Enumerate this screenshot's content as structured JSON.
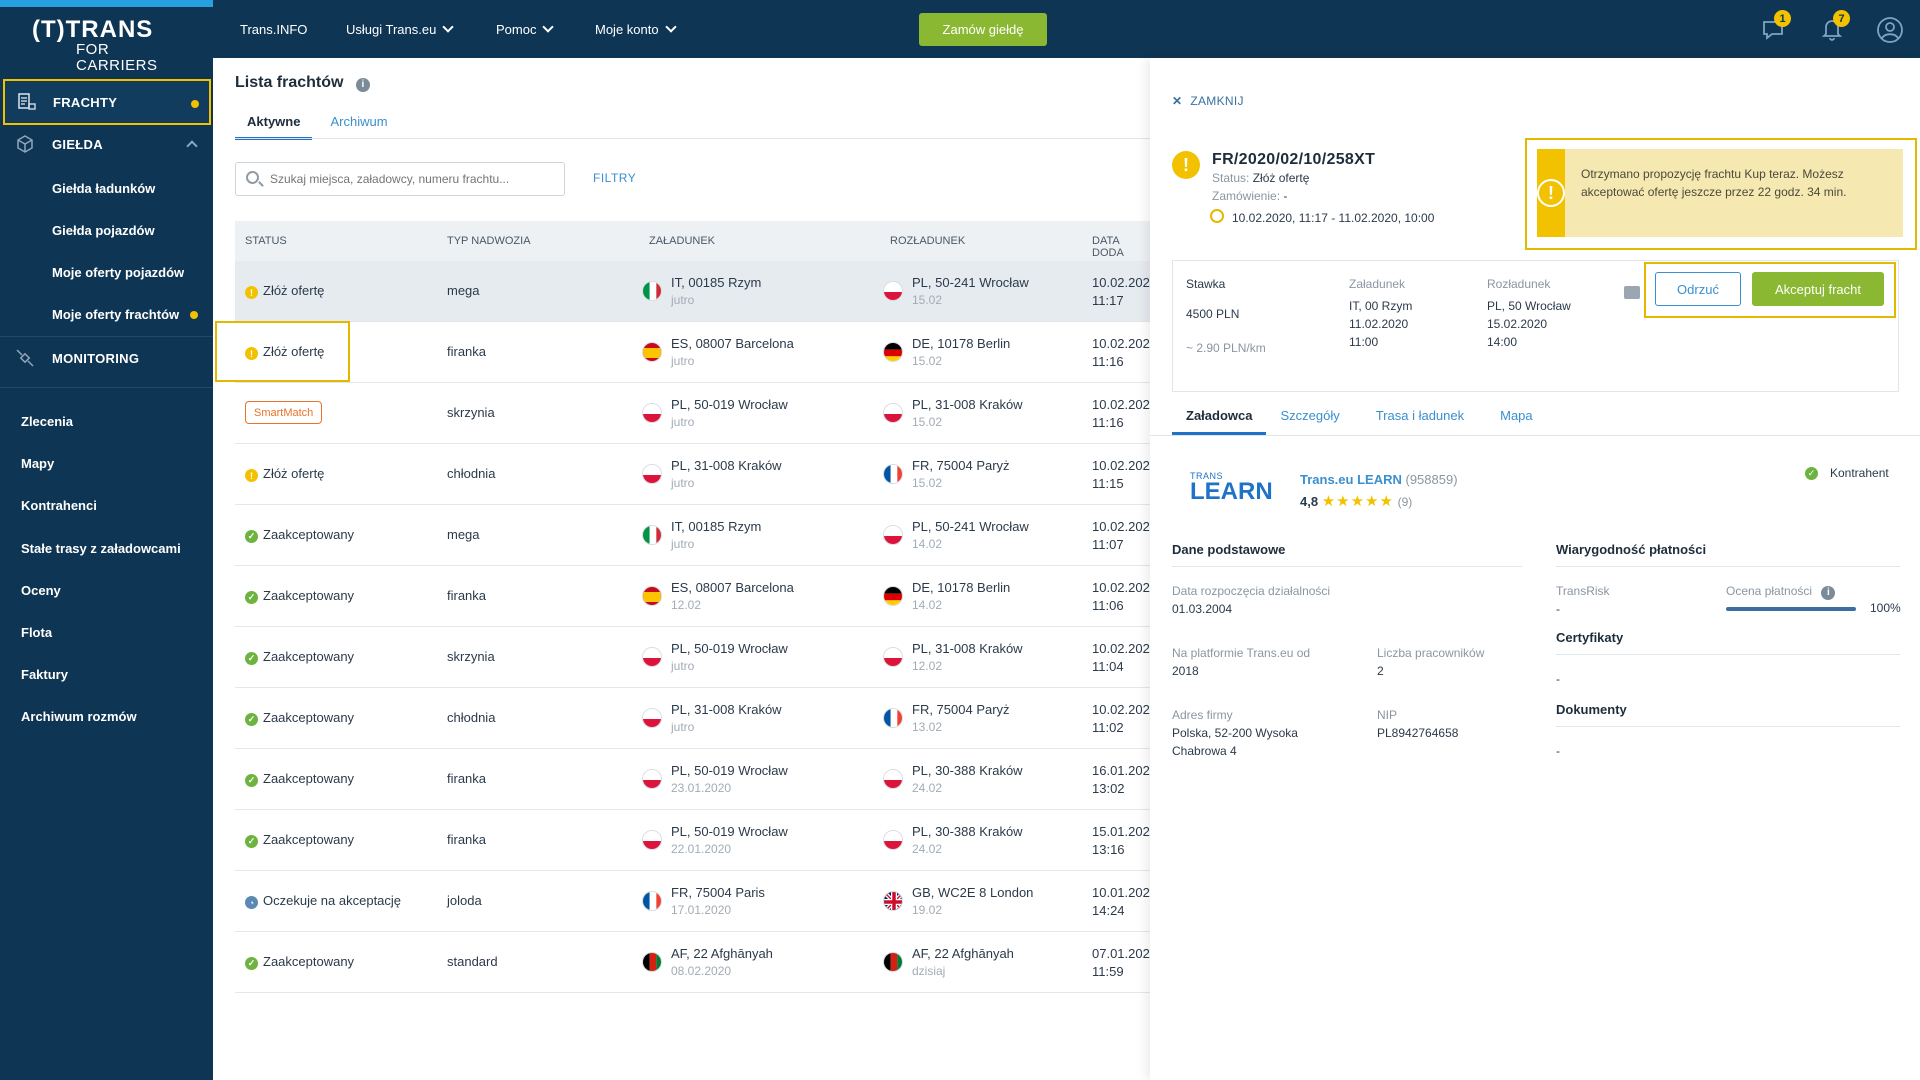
{
  "app": {
    "logo_line1": "(T)TRANS",
    "logo_line2": "FOR CARRIERS"
  },
  "topnav": {
    "items": [
      "Trans.INFO",
      "Usługi Trans.eu",
      "Pomoc",
      "Moje konto"
    ],
    "order_button": "Zamów giełdę",
    "messages_badge": "1",
    "notifications_badge": "7"
  },
  "sidebar": {
    "frachty": "FRACHTY",
    "gielda": "GIEŁDA",
    "gielda_sub": [
      "Giełda ładunków",
      "Giełda pojazdów",
      "Moje oferty pojazdów",
      "Moje oferty frachtów"
    ],
    "monitoring": "MONITORING",
    "bottom": [
      "Zlecenia",
      "Mapy",
      "Kontrahenci",
      "Stałe trasy z załadowcami",
      "Oceny",
      "Flota",
      "Faktury",
      "Archiwum rozmów"
    ]
  },
  "list": {
    "title": "Lista frachtów",
    "tabs": [
      "Aktywne",
      "Archiwum"
    ],
    "search_placeholder": "Szukaj miejsca, załadowcy, numeru frachtu...",
    "filters": "FILTRY",
    "headers": [
      "STATUS",
      "TYP NADWOZIA",
      "ZAŁADUNEK",
      "ROZŁADUNEK",
      "DATA DODA"
    ],
    "rows": [
      {
        "status": "Złóż ofertę",
        "type": "mega",
        "load": "IT, 00185 Rzym",
        "load_date": "jutro",
        "unload": "PL, 50-241 Wrocław",
        "unload_date": "15.02",
        "date": "10.02.202",
        "time": "11:17"
      },
      {
        "status": "Złóż ofertę",
        "type": "firanka",
        "load": "ES, 08007 Barcelona",
        "load_date": "jutro",
        "unload": "DE, 10178 Berlin",
        "unload_date": "15.02",
        "date": "10.02.202",
        "time": "11:16"
      },
      {
        "status": "SmartMatch",
        "type": "skrzynia",
        "load": "PL, 50-019 Wrocław",
        "load_date": "jutro",
        "unload": "PL, 31-008 Kraków",
        "unload_date": "15.02",
        "date": "10.02.202",
        "time": "11:16"
      },
      {
        "status": "Złóż ofertę",
        "type": "chłodnia",
        "load": "PL, 31-008 Kraków",
        "load_date": "jutro",
        "unload": "FR, 75004 Paryż",
        "unload_date": "15.02",
        "date": "10.02.202",
        "time": "11:15"
      },
      {
        "status": "Zaakceptowany",
        "type": "mega",
        "load": "IT, 00185 Rzym",
        "load_date": "jutro",
        "unload": "PL, 50-241 Wrocław",
        "unload_date": "14.02",
        "date": "10.02.202",
        "time": "11:07"
      },
      {
        "status": "Zaakceptowany",
        "type": "firanka",
        "load": "ES, 08007 Barcelona",
        "load_date": "12.02",
        "unload": "DE, 10178 Berlin",
        "unload_date": "14.02",
        "date": "10.02.202",
        "time": "11:06"
      },
      {
        "status": "Zaakceptowany",
        "type": "skrzynia",
        "load": "PL, 50-019 Wrocław",
        "load_date": "jutro",
        "unload": "PL, 31-008 Kraków",
        "unload_date": "12.02",
        "date": "10.02.202",
        "time": "11:04"
      },
      {
        "status": "Zaakceptowany",
        "type": "chłodnia",
        "load": "PL, 31-008 Kraków",
        "load_date": "jutro",
        "unload": "FR, 75004 Paryż",
        "unload_date": "13.02",
        "date": "10.02.202",
        "time": "11:02"
      },
      {
        "status": "Zaakceptowany",
        "type": "firanka",
        "load": "PL, 50-019 Wrocław",
        "load_date": "23.01.2020",
        "unload": "PL, 30-388 Kraków",
        "unload_date": "24.02",
        "date": "16.01.202",
        "time": "13:02"
      },
      {
        "status": "Zaakceptowany",
        "type": "firanka",
        "load": "PL, 50-019 Wrocław",
        "load_date": "22.01.2020",
        "unload": "PL, 30-388 Kraków",
        "unload_date": "24.02",
        "date": "15.01.202",
        "time": "13:16"
      },
      {
        "status": "Oczekuje na akceptację",
        "type": "joloda",
        "load": "FR, 75004 Paris",
        "load_date": "17.01.2020",
        "unload": "GB, WC2E 8 London",
        "unload_date": "19.02",
        "date": "10.01.202",
        "time": "14:24"
      },
      {
        "status": "Zaakceptowany",
        "type": "standard",
        "load": "AF, 22 Afghānyah",
        "load_date": "08.02.2020",
        "unload": "AF, 22 Afghānyah",
        "unload_date": "dzisiaj",
        "date": "07.01.202",
        "time": "11:59"
      }
    ]
  },
  "panel": {
    "close": "ZAMKNIJ",
    "number": "FR/2020/02/10/258XT",
    "status_label": "Status:",
    "status_value": "Złóż ofertę",
    "order_label": "Zamówienie:",
    "order_value": "-",
    "period": "10.02.2020, 11:17 - 11.02.2020, 10:00",
    "alert": "Otrzymano propozycję frachtu Kup teraz. Możesz akceptować ofertę jeszcze przez 22 godz. 34 min.",
    "offer": {
      "rate_label": "Stawka",
      "rate": "4500  PLN",
      "rate_km": "~ 2.90 PLN/km",
      "load_label": "Załadunek",
      "load_lines": [
        "IT, 00 Rzym",
        "11.02.2020",
        "11:00"
      ],
      "unload_label": "Rozładunek",
      "unload_lines": [
        "PL, 50 Wrocław",
        "15.02.2020",
        "14:00"
      ]
    },
    "reject": "Odrzuć",
    "accept": "Akceptuj fracht",
    "tabs": [
      "Załadowca",
      "Szczegóły",
      "Trasa i ładunek",
      "Mapa"
    ],
    "company": {
      "logo_small": "TRANS",
      "logo_big": "LEARN",
      "name": "Trans.eu LEARN",
      "id": "(958859)",
      "rating": "4,8",
      "stars": "★★★★★",
      "reviews": "(9)",
      "kontrahent": "Kontrahent"
    },
    "basic": {
      "title": "Dane podstawowe",
      "start_label": "Data rozpoczęcia działalności",
      "start_value": "01.03.2004",
      "platform_label": "Na platformie Trans.eu od",
      "platform_value": "2018",
      "employees_label": "Liczba pracowników",
      "employees_value": "2",
      "address_label": "Adres firmy",
      "address_lines": [
        "Polska, 52-200 Wysoka",
        "Chabrowa 4"
      ],
      "nip_label": "NIP",
      "nip_value": "PL8942764658"
    },
    "payment": {
      "title": "Wiarygodność płatności",
      "transrisk_label": "TransRisk",
      "transrisk_value": "-",
      "score_label": "Ocena płatności",
      "score_value": "100%",
      "score_fraction": 1.0,
      "cert_title": "Certyfikaty",
      "cert_value": "-",
      "docs_title": "Dokumenty",
      "docs_value": "-"
    }
  }
}
